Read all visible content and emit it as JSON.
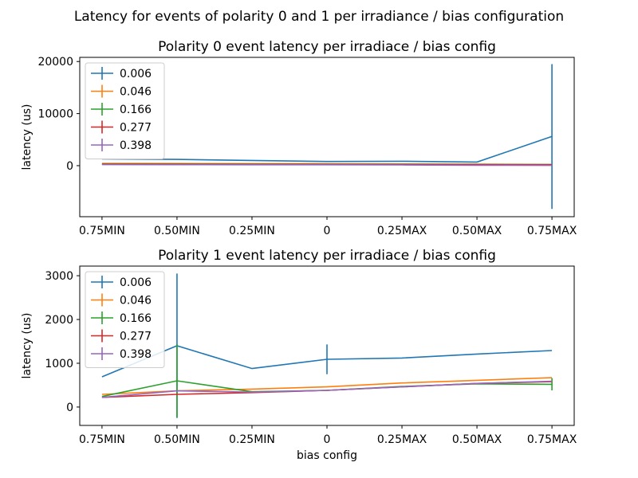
{
  "figure": {
    "suptitle": "Latency for events of polarity 0 and 1 per irradiance / bias configuration"
  },
  "chart_data": [
    {
      "type": "line",
      "title": "Polarity 0 event latency per irradiace / bias config",
      "xlabel": "",
      "ylabel": "latency (us)",
      "categories": [
        "0.75MIN",
        "0.50MIN",
        "0.25MIN",
        "0",
        "0.25MAX",
        "0.50MAX",
        "0.75MAX"
      ],
      "ylim": [
        -9800,
        20800
      ],
      "yticks": [
        0,
        10000,
        20000
      ],
      "grid": false,
      "legend_position": "upper-left",
      "series": [
        {
          "name": "0.006",
          "color": "#1f77b4",
          "values": [
            1300,
            1200,
            1000,
            800,
            850,
            700,
            5600
          ],
          "err": [
            0,
            0,
            0,
            0,
            0,
            0,
            13900
          ]
        },
        {
          "name": "0.046",
          "color": "#ff7f0e",
          "values": [
            450,
            420,
            390,
            370,
            330,
            280,
            230
          ],
          "err": [
            0,
            0,
            0,
            0,
            0,
            0,
            0
          ]
        },
        {
          "name": "0.166",
          "color": "#2ca02c",
          "values": [
            320,
            310,
            290,
            270,
            250,
            220,
            200
          ],
          "err": [
            0,
            0,
            0,
            0,
            0,
            0,
            0
          ]
        },
        {
          "name": "0.277",
          "color": "#d62728",
          "values": [
            260,
            250,
            240,
            230,
            210,
            190,
            170
          ],
          "err": [
            0,
            0,
            0,
            0,
            0,
            0,
            0
          ]
        },
        {
          "name": "0.398",
          "color": "#9467bd",
          "values": [
            200,
            190,
            180,
            170,
            150,
            80,
            60
          ],
          "err": [
            0,
            0,
            0,
            0,
            0,
            0,
            0
          ]
        }
      ]
    },
    {
      "type": "line",
      "title": "Polarity 1 event latency per irradiace / bias config",
      "xlabel": "bias config",
      "ylabel": "latency (us)",
      "categories": [
        "0.75MIN",
        "0.50MIN",
        "0.25MIN",
        "0",
        "0.25MAX",
        "0.50MAX",
        "0.75MAX"
      ],
      "ylim": [
        -420,
        3220
      ],
      "yticks": [
        0,
        1000,
        2000,
        3000
      ],
      "grid": false,
      "legend_position": "upper-left",
      "series": [
        {
          "name": "0.006",
          "color": "#1f77b4",
          "values": [
            690,
            1400,
            880,
            1090,
            1120,
            1210,
            1290
          ],
          "err": [
            0,
            1650,
            0,
            340,
            0,
            0,
            0
          ]
        },
        {
          "name": "0.046",
          "color": "#ff7f0e",
          "values": [
            290,
            370,
            410,
            460,
            550,
            610,
            670
          ],
          "err": [
            0,
            0,
            0,
            0,
            0,
            0,
            0
          ]
        },
        {
          "name": "0.166",
          "color": "#2ca02c",
          "values": [
            240,
            600,
            350,
            380,
            470,
            530,
            520
          ],
          "err": [
            0,
            840,
            0,
            0,
            0,
            0,
            140
          ]
        },
        {
          "name": "0.277",
          "color": "#d62728",
          "values": [
            220,
            290,
            330,
            380,
            460,
            540,
            580
          ],
          "err": [
            0,
            0,
            0,
            0,
            0,
            0,
            0
          ]
        },
        {
          "name": "0.398",
          "color": "#9467bd",
          "values": [
            220,
            370,
            340,
            380,
            460,
            540,
            590
          ],
          "err": [
            0,
            0,
            0,
            0,
            0,
            0,
            0
          ]
        }
      ]
    }
  ]
}
